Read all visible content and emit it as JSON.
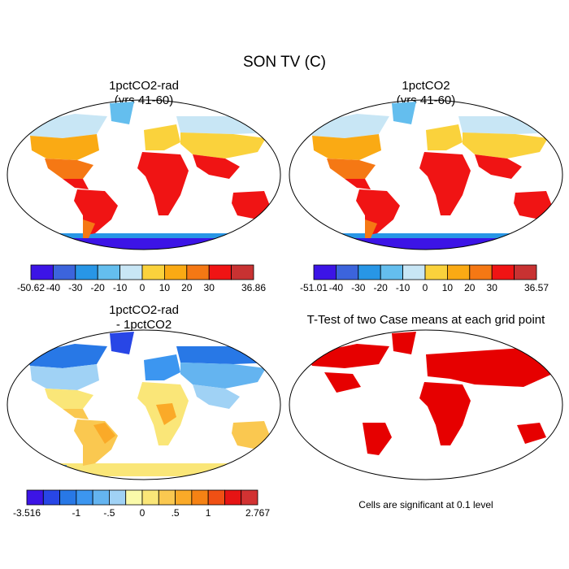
{
  "figure": {
    "title": "SON TV (C)"
  },
  "chart_data": [
    {
      "type": "heatmap",
      "panel": "top-left",
      "title_lines": [
        "1pctCO2-rad",
        "(yrs 41-60)"
      ],
      "colorbar": {
        "tick_labels": [
          "-50.62",
          "-40",
          "-30",
          "-20",
          "-10",
          "0",
          "10",
          "20",
          "30",
          "36.86"
        ],
        "colors": [
          "#3c14e6",
          "#3c64dc",
          "#2896e6",
          "#64beee",
          "#c8e6f5",
          "#fad23c",
          "#faaa14",
          "#f57814",
          "#f01414",
          "#c83232"
        ]
      }
    },
    {
      "type": "heatmap",
      "panel": "top-right",
      "title_lines": [
        "1pctCO2",
        "(yrs 41-60)"
      ],
      "colorbar": {
        "tick_labels": [
          "-51.01",
          "-40",
          "-30",
          "-20",
          "-10",
          "0",
          "10",
          "20",
          "30",
          "36.57"
        ],
        "colors": [
          "#3c14e6",
          "#3c64dc",
          "#2896e6",
          "#64beee",
          "#c8e6f5",
          "#fad23c",
          "#faaa14",
          "#f57814",
          "#f01414",
          "#c83232"
        ]
      }
    },
    {
      "type": "heatmap",
      "panel": "bottom-left",
      "title_lines": [
        "1pctCO2-rad",
        "- 1pctCO2"
      ],
      "colorbar": {
        "tick_labels": [
          "-3.516",
          "-1",
          "-.5",
          "0",
          ".5",
          "1",
          "2.767"
        ],
        "tick_bins": [
          0,
          3,
          5,
          7,
          9,
          11,
          14
        ],
        "colors": [
          "#3c14e6",
          "#2846e6",
          "#2878e6",
          "#3c96f0",
          "#64b4f0",
          "#a0d2f5",
          "#fafaaa",
          "#fae678",
          "#fac850",
          "#faaa28",
          "#f58214",
          "#f05014",
          "#e61414",
          "#d23232"
        ]
      }
    },
    {
      "type": "heatmap",
      "panel": "bottom-right",
      "title_lines": [
        "T-Test of two Case means at each grid point"
      ],
      "note": "Cells are significant at 0.1 level",
      "colors": [
        "#e60000"
      ]
    }
  ]
}
